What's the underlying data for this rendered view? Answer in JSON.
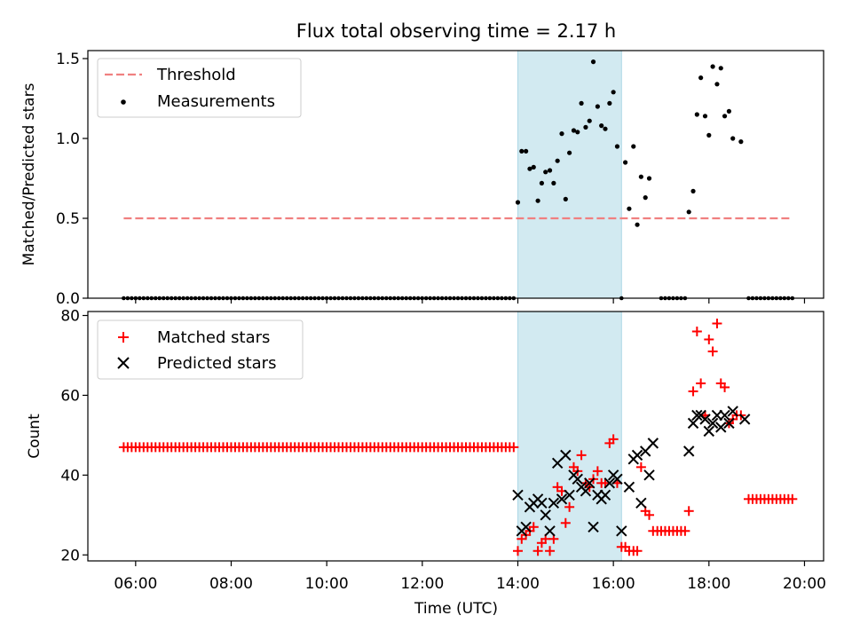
{
  "chart_data": [
    {
      "type": "scatter",
      "title": "Flux total observing time = 2.17 h",
      "xlabel": "",
      "ylabel": "Matched/Predicted stars",
      "ylim": [
        0,
        1.55
      ],
      "yticks": [
        "0.0",
        "0.5",
        "1.0",
        "1.5"
      ],
      "ytick_values": [
        0,
        0.5,
        1.0,
        1.5
      ],
      "xlim": [
        5.0,
        20.4
      ],
      "xtick_values": [
        6,
        8,
        10,
        12,
        14,
        16,
        18,
        20
      ],
      "legend": {
        "position": "top-left",
        "entries": [
          {
            "label": "Threshold",
            "style": "dashed-line",
            "color": "#f08080"
          },
          {
            "label": "Measurements",
            "style": "dot",
            "color": "#000000"
          }
        ]
      },
      "threshold": {
        "value": 0.5,
        "x_start": 5.75,
        "x_end": 19.75,
        "color": "#f08080"
      },
      "shaded_region": {
        "x_start": 14.0,
        "x_end": 16.17,
        "color": "#add8e6"
      },
      "zero_series_ranges": [
        {
          "start": 5.75,
          "end": 13.95,
          "step": 0.0833
        },
        {
          "start": 16.17,
          "end": 16.17,
          "step": 0.0833
        },
        {
          "start": 17.0,
          "end": 17.5,
          "step": 0.0833
        },
        {
          "start": 18.83,
          "end": 19.75,
          "step": 0.0833
        }
      ],
      "series": [
        {
          "marker": "dot",
          "color": "#000000",
          "x": [
            14.0,
            14.08,
            14.17,
            14.25,
            14.33,
            14.42,
            14.5,
            14.58,
            14.67,
            14.75,
            14.83,
            14.92,
            15.0,
            15.08,
            15.17,
            15.25,
            15.33,
            15.42,
            15.5,
            15.58,
            15.67,
            15.75,
            15.83,
            15.92,
            16.0,
            16.08,
            16.25,
            16.33,
            16.42,
            16.5,
            16.58,
            16.67,
            16.75,
            17.58,
            17.67,
            17.75,
            17.83,
            17.92,
            18.0,
            18.08,
            18.17,
            18.25,
            18.33,
            18.42,
            18.5,
            18.67
          ],
          "y": [
            0.6,
            0.92,
            0.92,
            0.81,
            0.82,
            0.61,
            0.72,
            0.79,
            0.8,
            0.72,
            0.86,
            1.03,
            0.62,
            0.91,
            1.05,
            1.04,
            1.22,
            1.07,
            1.11,
            1.48,
            1.2,
            1.08,
            1.06,
            1.22,
            1.29,
            0.95,
            0.85,
            0.56,
            0.95,
            0.46,
            0.76,
            0.63,
            0.75,
            0.54,
            0.67,
            1.15,
            1.38,
            1.14,
            1.02,
            1.45,
            1.34,
            1.44,
            1.14,
            1.17,
            1.0,
            0.98
          ]
        }
      ]
    },
    {
      "type": "scatter",
      "title": "",
      "xlabel": "Time (UTC)",
      "ylabel": "Count",
      "ylim": [
        18.5,
        81.0
      ],
      "yticks": [
        "20",
        "40",
        "60",
        "80"
      ],
      "ytick_values": [
        20,
        40,
        60,
        80
      ],
      "xlim": [
        5.0,
        20.4
      ],
      "xticks": [
        "06:00",
        "08:00",
        "10:00",
        "12:00",
        "14:00",
        "16:00",
        "18:00",
        "20:00"
      ],
      "xtick_values": [
        6,
        8,
        10,
        12,
        14,
        16,
        18,
        20
      ],
      "legend": {
        "position": "top-left",
        "entries": [
          {
            "label": "Matched stars",
            "style": "plus",
            "color": "#ff0000"
          },
          {
            "label": "Predicted stars",
            "style": "cross",
            "color": "#000000"
          }
        ]
      },
      "shaded_region": {
        "x_start": 14.0,
        "x_end": 16.17,
        "color": "#add8e6"
      },
      "matched_constant_ranges": [
        {
          "start": 5.75,
          "end": 13.95,
          "step": 0.0833,
          "value": 47
        },
        {
          "start": 17.0,
          "end": 17.5,
          "step": 0.0833,
          "value": 26
        },
        {
          "start": 18.83,
          "end": 19.75,
          "step": 0.0833,
          "value": 34
        }
      ],
      "series": [
        {
          "name": "Matched stars",
          "marker": "plus",
          "color": "#ff0000",
          "x": [
            14.0,
            14.08,
            14.17,
            14.25,
            14.33,
            14.42,
            14.5,
            14.58,
            14.67,
            14.75,
            14.83,
            14.92,
            15.0,
            15.08,
            15.17,
            15.25,
            15.33,
            15.42,
            15.5,
            15.58,
            15.67,
            15.75,
            15.83,
            15.92,
            16.0,
            16.08,
            16.17,
            16.25,
            16.33,
            16.42,
            16.5,
            16.58,
            16.67,
            16.75,
            16.83,
            16.92,
            17.58,
            17.67,
            17.75,
            17.83,
            17.92,
            18.0,
            18.08,
            18.17,
            18.25,
            18.33,
            18.42,
            18.5,
            18.58,
            18.67
          ],
          "y": [
            21,
            24,
            25,
            26,
            27,
            21,
            23,
            24,
            21,
            24,
            37,
            36,
            28,
            32,
            42,
            41,
            45,
            38,
            37,
            39,
            41,
            38,
            38,
            48,
            49,
            38,
            22,
            22,
            21,
            21,
            21,
            42,
            31,
            30,
            26,
            26,
            31,
            61,
            76,
            63,
            55,
            74,
            71,
            78,
            63,
            62,
            53,
            54,
            55,
            55
          ]
        },
        {
          "name": "Predicted stars",
          "marker": "cross",
          "color": "#000000",
          "x": [
            14.0,
            14.08,
            14.17,
            14.25,
            14.33,
            14.42,
            14.5,
            14.58,
            14.67,
            14.75,
            14.83,
            14.92,
            15.0,
            15.08,
            15.17,
            15.25,
            15.33,
            15.42,
            15.5,
            15.58,
            15.67,
            15.75,
            15.83,
            15.92,
            16.0,
            16.08,
            16.17,
            16.33,
            16.42,
            16.5,
            16.58,
            16.67,
            16.75,
            16.83,
            17.58,
            17.67,
            17.75,
            17.83,
            17.92,
            18.0,
            18.08,
            18.17,
            18.25,
            18.33,
            18.42,
            18.5,
            18.75
          ],
          "y": [
            35,
            26,
            27,
            32,
            33,
            34,
            33,
            30,
            26,
            33,
            43,
            34,
            45,
            35,
            40,
            39,
            37,
            36,
            38,
            27,
            35,
            34,
            35,
            38,
            40,
            39,
            26,
            37,
            44,
            45,
            33,
            46,
            40,
            48,
            46,
            53,
            55,
            55,
            54,
            51,
            53,
            55,
            52,
            55,
            53,
            56,
            54
          ]
        }
      ]
    }
  ]
}
